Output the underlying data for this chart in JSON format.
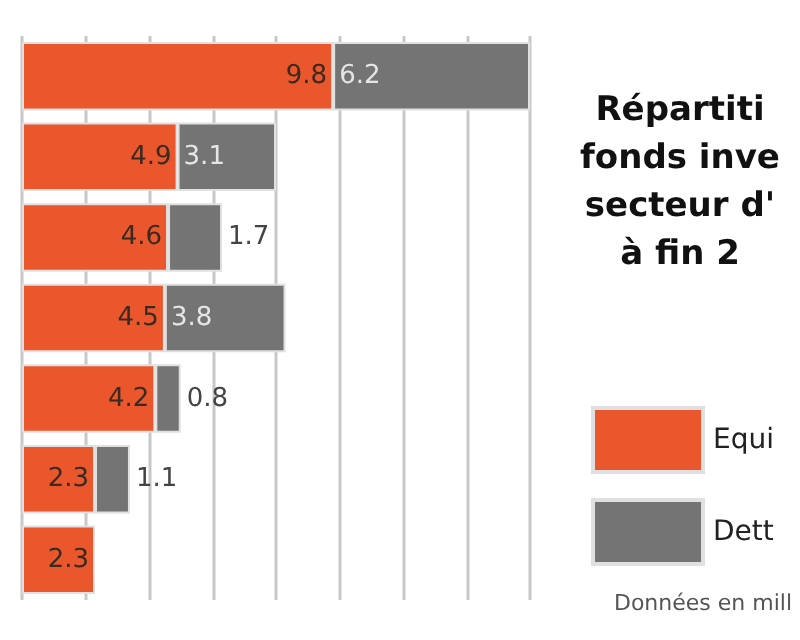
{
  "chart_data": {
    "type": "bar",
    "orientation": "horizontal",
    "stacked": true,
    "title": "Répartiti\nfonds inve\nsecteur d'\nà fin 2",
    "categories": [
      null,
      null,
      null,
      null,
      null,
      null,
      null
    ],
    "series": [
      {
        "name": "Equi",
        "color": "#ea572c",
        "values": [
          9.8,
          4.9,
          4.6,
          4.5,
          4.2,
          2.3,
          2.3
        ]
      },
      {
        "name": "Dett",
        "color": "#747474",
        "values": [
          6.2,
          3.1,
          1.7,
          3.8,
          0.8,
          1.1,
          null
        ]
      }
    ],
    "xlim": [
      0,
      16
    ],
    "grid": "x",
    "data_labels": true,
    "legend": "right",
    "annotations": [
      "Données en mill"
    ]
  }
}
